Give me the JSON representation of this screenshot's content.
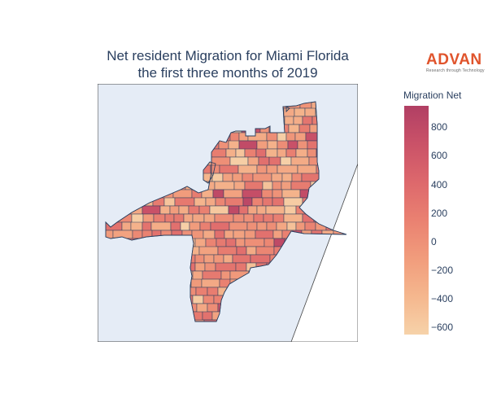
{
  "title": {
    "line1": "Net resident Migration for Miami Florida",
    "line2": "the first three months of 2019"
  },
  "brand": {
    "name": "ADVAN",
    "tagline": "Research through Technology"
  },
  "colorbar": {
    "title": "Migration Net",
    "min": -650,
    "max": 950,
    "ticks": [
      {
        "value": 800,
        "label": "800"
      },
      {
        "value": 600,
        "label": "600"
      },
      {
        "value": 400,
        "label": "400"
      },
      {
        "value": 200,
        "label": "200"
      },
      {
        "value": 0,
        "label": "0"
      },
      {
        "value": -200,
        "label": "−200"
      },
      {
        "value": -400,
        "label": "−400"
      },
      {
        "value": -600,
        "label": "−600"
      }
    ],
    "colors": [
      "#f6d2a9",
      "#f5b78e",
      "#f19c7c",
      "#ea8171",
      "#dd686c",
      "#ca5268",
      "#b13f64"
    ]
  },
  "map": {
    "background_color": "#e5ecf6",
    "land_stroke": "#2a3f5f"
  }
}
